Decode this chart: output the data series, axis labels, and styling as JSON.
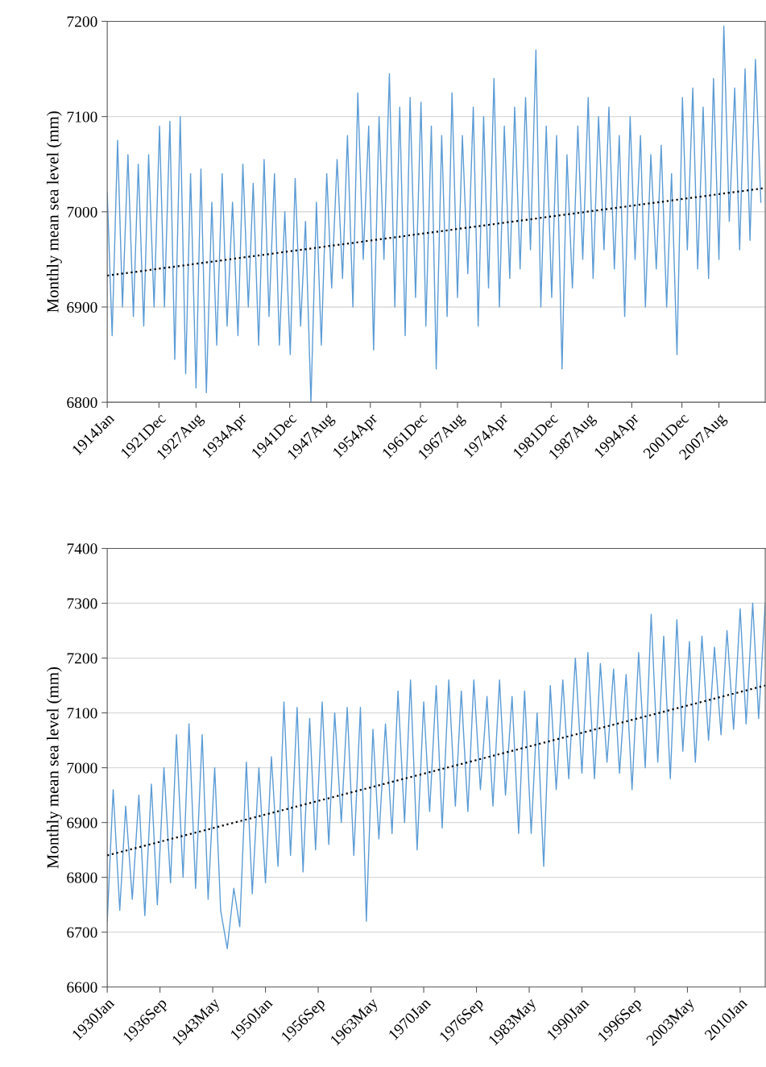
{
  "chart_data": [
    {
      "type": "line",
      "ylabel": "Monthly mean sea level (mm)",
      "xlim": [
        "1914-01",
        "2014-09"
      ],
      "ylim": [
        6800,
        7200
      ],
      "yticks": [
        6800,
        6900,
        7000,
        7100,
        7200
      ],
      "grid": "y",
      "xticks": [
        {
          "value": "1914-01",
          "label": "1914Jan"
        },
        {
          "value": "1921-12",
          "label": "1921Dec"
        },
        {
          "value": "1927-08",
          "label": "1927Aug"
        },
        {
          "value": "1934-04",
          "label": "1934Apr"
        },
        {
          "value": "1941-12",
          "label": "1941Dec"
        },
        {
          "value": "1947-08",
          "label": "1947Aug"
        },
        {
          "value": "1954-04",
          "label": "1954Apr"
        },
        {
          "value": "1961-12",
          "label": "1961Dec"
        },
        {
          "value": "1967-08",
          "label": "1967Aug"
        },
        {
          "value": "1974-04",
          "label": "1974Apr"
        },
        {
          "value": "1981-12",
          "label": "1981Dec"
        },
        {
          "value": "1987-08",
          "label": "1987Aug"
        },
        {
          "value": "1994-04",
          "label": "1994Apr"
        },
        {
          "value": "2001-12",
          "label": "2001Dec"
        },
        {
          "value": "2007-08",
          "label": "2007Aug"
        }
      ],
      "series": [
        {
          "color": "#5b9bd5",
          "line_style": "solid",
          "x": [
            "1914-01",
            "1914-10",
            "1915-08",
            "1916-05",
            "1917-03",
            "1918-01",
            "1918-10",
            "1919-08",
            "1920-05",
            "1921-03",
            "1922-01",
            "1922-10",
            "1923-08",
            "1924-05",
            "1925-03",
            "1926-01",
            "1926-10",
            "1927-08",
            "1928-05",
            "1929-03",
            "1930-01",
            "1930-10",
            "1931-08",
            "1932-05",
            "1933-03",
            "1934-01",
            "1934-10",
            "1935-08",
            "1936-05",
            "1937-03",
            "1938-01",
            "1938-10",
            "1939-08",
            "1940-05",
            "1941-03",
            "1942-01",
            "1942-10",
            "1943-08",
            "1944-05",
            "1945-03",
            "1946-01",
            "1946-10",
            "1947-08",
            "1948-05",
            "1949-03",
            "1950-01",
            "1950-10",
            "1951-08",
            "1952-05",
            "1953-03",
            "1954-01",
            "1954-10",
            "1955-08",
            "1956-05",
            "1957-03",
            "1958-01",
            "1958-10",
            "1959-08",
            "1960-05",
            "1961-03",
            "1962-01",
            "1962-10",
            "1963-08",
            "1964-05",
            "1965-03",
            "1966-01",
            "1966-10",
            "1967-08",
            "1968-05",
            "1969-03",
            "1970-01",
            "1970-10",
            "1971-08",
            "1972-05",
            "1973-03",
            "1974-01",
            "1974-10",
            "1975-08",
            "1976-05",
            "1977-03",
            "1978-01",
            "1978-10",
            "1979-08",
            "1980-05",
            "1981-03",
            "1982-01",
            "1982-10",
            "1983-08",
            "1984-05",
            "1985-03",
            "1986-01",
            "1986-10",
            "1987-08",
            "1988-05",
            "1989-03",
            "1990-01",
            "1990-10",
            "1991-08",
            "1992-05",
            "1993-03",
            "1994-01",
            "1994-10",
            "1995-08",
            "1996-05",
            "1997-03",
            "1998-01",
            "1998-10",
            "1999-08",
            "2000-05",
            "2001-03",
            "2002-01",
            "2002-10",
            "2003-08",
            "2004-05",
            "2005-03",
            "2006-01",
            "2006-10",
            "2007-08",
            "2008-05",
            "2009-03",
            "2010-01",
            "2010-10",
            "2011-08",
            "2012-05",
            "2013-03",
            "2014-01"
          ],
          "values": [
            7020,
            6870,
            7075,
            6900,
            7060,
            6890,
            7050,
            6880,
            7060,
            6900,
            7090,
            6900,
            7095,
            6845,
            7100,
            6830,
            7040,
            6815,
            7045,
            6810,
            7010,
            6860,
            7040,
            6880,
            7010,
            6870,
            7050,
            6900,
            7030,
            6860,
            7055,
            6890,
            7040,
            6860,
            7000,
            6850,
            7035,
            6880,
            6990,
            6800,
            7010,
            6860,
            7040,
            6920,
            7055,
            6930,
            7080,
            6900,
            7125,
            6950,
            7090,
            6855,
            7100,
            6950,
            7145,
            6900,
            7110,
            6870,
            7120,
            6910,
            7115,
            6880,
            7090,
            6835,
            7080,
            6890,
            7125,
            6910,
            7080,
            6935,
            7110,
            6880,
            7100,
            6920,
            7140,
            6900,
            7090,
            6930,
            7110,
            6940,
            7120,
            6960,
            7170,
            6900,
            7090,
            6910,
            7080,
            6835,
            7060,
            6920,
            7090,
            6950,
            7120,
            6930,
            7100,
            6960,
            7110,
            6940,
            7080,
            6890,
            7100,
            6950,
            7080,
            6900,
            7060,
            6940,
            7070,
            6900,
            7040,
            6850,
            7120,
            6960,
            7130,
            6940,
            7110,
            6930,
            7140,
            6950,
            7195,
            6990,
            7130,
            6960,
            7150,
            6970,
            7160,
            7010
          ]
        },
        {
          "color": "#000000",
          "line_style": "dotted",
          "x": [
            "1914-01",
            "2014-09"
          ],
          "values": [
            6933,
            7025
          ]
        }
      ]
    },
    {
      "type": "line",
      "ylabel": "Monthly mean sea level (mm)",
      "xlim": [
        "1930-01",
        "2013-03"
      ],
      "ylim": [
        6600,
        7400
      ],
      "yticks": [
        6600,
        6700,
        6800,
        6900,
        7000,
        7100,
        7200,
        7300,
        7400
      ],
      "grid": "y",
      "xticks": [
        {
          "value": "1930-01",
          "label": "1930Jan"
        },
        {
          "value": "1936-09",
          "label": "1936Sep"
        },
        {
          "value": "1943-05",
          "label": "1943May"
        },
        {
          "value": "1950-01",
          "label": "1950Jan"
        },
        {
          "value": "1956-09",
          "label": "1956Sep"
        },
        {
          "value": "1963-05",
          "label": "1963May"
        },
        {
          "value": "1970-01",
          "label": "1970Jan"
        },
        {
          "value": "1976-09",
          "label": "1976Sep"
        },
        {
          "value": "1983-05",
          "label": "1983May"
        },
        {
          "value": "1990-01",
          "label": "1990Jan"
        },
        {
          "value": "1996-09",
          "label": "1996Sep"
        },
        {
          "value": "2003-05",
          "label": "2003May"
        },
        {
          "value": "2010-01",
          "label": "2010Jan"
        }
      ],
      "series": [
        {
          "color": "#5b9bd5",
          "line_style": "solid",
          "x": [
            "1930-01",
            "1930-10",
            "1931-08",
            "1932-05",
            "1933-03",
            "1934-01",
            "1934-10",
            "1935-08",
            "1936-05",
            "1937-03",
            "1938-01",
            "1938-10",
            "1939-08",
            "1940-05",
            "1941-03",
            "1942-01",
            "1942-10",
            "1943-08",
            "1944-05",
            "1945-03",
            "1946-01",
            "1946-10",
            "1947-08",
            "1948-05",
            "1949-03",
            "1950-01",
            "1950-10",
            "1951-08",
            "1952-05",
            "1953-03",
            "1954-01",
            "1954-10",
            "1955-08",
            "1956-05",
            "1957-03",
            "1958-01",
            "1958-10",
            "1959-08",
            "1960-05",
            "1961-03",
            "1962-01",
            "1962-10",
            "1963-08",
            "1964-05",
            "1965-03",
            "1966-01",
            "1966-10",
            "1967-08",
            "1968-05",
            "1969-03",
            "1970-01",
            "1970-10",
            "1971-08",
            "1972-05",
            "1973-03",
            "1974-01",
            "1974-10",
            "1975-08",
            "1976-05",
            "1977-03",
            "1978-01",
            "1978-10",
            "1979-08",
            "1980-05",
            "1981-03",
            "1982-01",
            "1982-10",
            "1983-08",
            "1984-05",
            "1985-03",
            "1986-01",
            "1986-10",
            "1987-08",
            "1988-05",
            "1989-03",
            "1990-01",
            "1990-10",
            "1991-08",
            "1992-05",
            "1993-03",
            "1994-01",
            "1994-10",
            "1995-08",
            "1996-05",
            "1997-03",
            "1998-01",
            "1998-10",
            "1999-08",
            "2000-05",
            "2001-03",
            "2002-01",
            "2002-10",
            "2003-08",
            "2004-05",
            "2005-03",
            "2006-01",
            "2006-10",
            "2007-08",
            "2008-05",
            "2009-03",
            "2010-01",
            "2010-10",
            "2011-08",
            "2012-05",
            "2013-03"
          ],
          "values": [
            6720,
            6960,
            6740,
            6930,
            6760,
            6950,
            6730,
            6970,
            6750,
            7000,
            6790,
            7060,
            6800,
            7080,
            6780,
            7060,
            6760,
            7000,
            6740,
            6670,
            6780,
            6710,
            7010,
            6770,
            7000,
            6790,
            7020,
            6820,
            7120,
            6840,
            7110,
            6810,
            7090,
            6850,
            7120,
            6860,
            7100,
            6900,
            7110,
            6840,
            7110,
            6720,
            7070,
            6870,
            7080,
            6880,
            7140,
            6900,
            7160,
            6850,
            7120,
            6920,
            7150,
            6890,
            7160,
            6930,
            7140,
            6920,
            7160,
            6960,
            7130,
            6930,
            7160,
            6950,
            7130,
            6880,
            7140,
            6880,
            7100,
            6820,
            7150,
            6960,
            7160,
            6980,
            7200,
            6990,
            7210,
            6980,
            7190,
            7010,
            7180,
            6990,
            7170,
            6960,
            7210,
            7000,
            7280,
            7010,
            7240,
            6980,
            7270,
            7030,
            7230,
            7010,
            7240,
            7050,
            7220,
            7060,
            7250,
            7070,
            7290,
            7080,
            7300,
            7090,
            7300
          ]
        },
        {
          "color": "#000000",
          "line_style": "dotted",
          "x": [
            "1930-01",
            "2013-03"
          ],
          "values": [
            6840,
            7150
          ]
        }
      ]
    }
  ]
}
